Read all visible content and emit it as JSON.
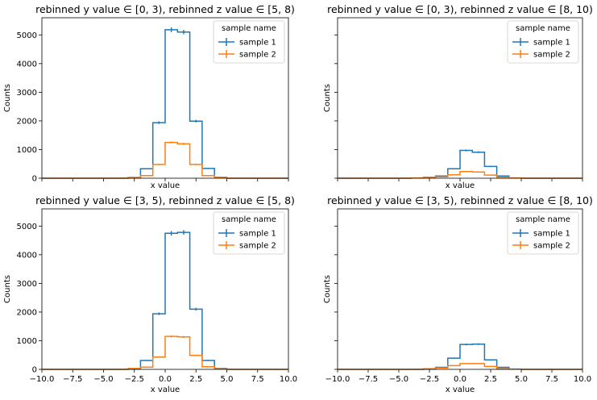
{
  "figure": {
    "legend_title": "sample name",
    "colors": {
      "sample 1": "#1f77b4",
      "sample 2": "#ff7f0e"
    }
  },
  "chart_data": [
    {
      "type": "step-histogram",
      "title": "rebinned y value ∈ [0, 3), rebinned z value ∈ [5, 8)",
      "xlabel": "x value",
      "ylabel": "Counts",
      "xlim": [
        -10,
        10
      ],
      "ylim": [
        0,
        5600
      ],
      "xticks": [
        "-10.0",
        "-7.5",
        "-5.0",
        "-2.5",
        "0.0",
        "2.5",
        "5.0",
        "7.5",
        "10.0"
      ],
      "yticks": [
        "0",
        "1000",
        "2000",
        "3000",
        "4000",
        "5000"
      ],
      "show_xticklabels": false,
      "show_yticklabels": true,
      "legend": {
        "title": "sample name",
        "position": "upper right"
      },
      "bin_edges": [
        -10,
        -9,
        -8,
        -7,
        -6,
        -5,
        -4,
        -3,
        -2,
        -1,
        0,
        1,
        2,
        3,
        4,
        5,
        6,
        7,
        8,
        9,
        10
      ],
      "series": [
        {
          "name": "sample 1",
          "values": [
            0,
            0,
            0,
            0,
            0,
            0,
            0,
            5,
            330,
            1940,
            5180,
            5100,
            1990,
            340,
            30,
            0,
            0,
            0,
            0,
            0
          ],
          "errors": [
            0,
            0,
            0,
            0,
            0,
            0,
            0,
            2,
            18,
            45,
            80,
            75,
            45,
            18,
            5,
            0,
            0,
            0,
            0,
            0
          ]
        },
        {
          "name": "sample 2",
          "values": [
            0,
            0,
            0,
            0,
            0,
            0,
            0,
            30,
            90,
            480,
            1250,
            1200,
            480,
            90,
            20,
            0,
            0,
            0,
            0,
            0
          ],
          "errors": [
            0,
            0,
            0,
            0,
            0,
            0,
            0,
            5,
            9,
            22,
            35,
            35,
            22,
            9,
            4,
            0,
            0,
            0,
            0,
            0
          ]
        }
      ]
    },
    {
      "type": "step-histogram",
      "title": "rebinned y value ∈ [0, 3), rebinned z value ∈ [8, 10)",
      "xlabel": "x value",
      "ylabel": "Counts",
      "xlim": [
        -10,
        10
      ],
      "ylim": [
        0,
        5600
      ],
      "xticks": [
        "-10.0",
        "-7.5",
        "-5.0",
        "-2.5",
        "0.0",
        "2.5",
        "5.0",
        "7.5",
        "10.0"
      ],
      "yticks": [
        "0",
        "1000",
        "2000",
        "3000",
        "4000",
        "5000"
      ],
      "show_xticklabels": false,
      "show_yticklabels": false,
      "legend": {
        "title": "sample name",
        "position": "upper right"
      },
      "bin_edges": [
        -10,
        -9,
        -8,
        -7,
        -6,
        -5,
        -4,
        -3,
        -2,
        -1,
        0,
        1,
        2,
        3,
        4,
        5,
        6,
        7,
        8,
        9,
        10
      ],
      "series": [
        {
          "name": "sample 1",
          "values": [
            0,
            0,
            0,
            0,
            0,
            0,
            5,
            30,
            80,
            330,
            970,
            910,
            410,
            80,
            10,
            0,
            0,
            0,
            0,
            0
          ],
          "errors": [
            0,
            0,
            0,
            0,
            0,
            0,
            2,
            5,
            9,
            18,
            31,
            30,
            20,
            9,
            3,
            0,
            0,
            0,
            0,
            0
          ]
        },
        {
          "name": "sample 2",
          "values": [
            0,
            0,
            0,
            0,
            0,
            0,
            5,
            20,
            50,
            120,
            230,
            220,
            110,
            30,
            5,
            0,
            0,
            0,
            0,
            0
          ],
          "errors": [
            0,
            0,
            0,
            0,
            0,
            0,
            2,
            4,
            7,
            11,
            15,
            15,
            10,
            5,
            2,
            0,
            0,
            0,
            0,
            0
          ]
        }
      ]
    },
    {
      "type": "step-histogram",
      "title": "rebinned y value ∈ [3, 5), rebinned z value ∈ [5, 8)",
      "xlabel": "x value",
      "ylabel": "Counts",
      "xlim": [
        -10,
        10
      ],
      "ylim": [
        0,
        5600
      ],
      "xticks": [
        "-10.0",
        "-7.5",
        "-5.0",
        "-2.5",
        "0.0",
        "2.5",
        "5.0",
        "7.5",
        "10.0"
      ],
      "yticks": [
        "0",
        "1000",
        "2000",
        "3000",
        "4000",
        "5000"
      ],
      "show_xticklabels": true,
      "show_yticklabels": true,
      "legend": {
        "title": "sample name",
        "position": "upper right"
      },
      "bin_edges": [
        -10,
        -9,
        -8,
        -7,
        -6,
        -5,
        -4,
        -3,
        -2,
        -1,
        0,
        1,
        2,
        3,
        4,
        5,
        6,
        7,
        8,
        9,
        10
      ],
      "series": [
        {
          "name": "sample 1",
          "values": [
            0,
            0,
            0,
            0,
            0,
            0,
            0,
            5,
            310,
            1940,
            4750,
            4780,
            2100,
            310,
            30,
            0,
            0,
            0,
            0,
            0
          ],
          "errors": [
            0,
            0,
            0,
            0,
            0,
            0,
            0,
            2,
            18,
            45,
            78,
            78,
            45,
            18,
            5,
            0,
            0,
            0,
            0,
            0
          ]
        },
        {
          "name": "sample 2",
          "values": [
            0,
            0,
            0,
            0,
            0,
            0,
            0,
            30,
            80,
            430,
            1150,
            1130,
            490,
            90,
            20,
            0,
            0,
            0,
            0,
            0
          ],
          "errors": [
            0,
            0,
            0,
            0,
            0,
            0,
            0,
            5,
            9,
            21,
            34,
            34,
            22,
            9,
            4,
            0,
            0,
            0,
            0,
            0
          ]
        }
      ]
    },
    {
      "type": "step-histogram",
      "title": "rebinned y value ∈ [3, 5), rebinned z value ∈ [8, 10)",
      "xlabel": "x value",
      "ylabel": "Counts",
      "xlim": [
        -10,
        10
      ],
      "ylim": [
        0,
        5600
      ],
      "xticks": [
        "-10.0",
        "-7.5",
        "-5.0",
        "-2.5",
        "0.0",
        "2.5",
        "5.0",
        "7.5",
        "10.0"
      ],
      "yticks": [
        "0",
        "1000",
        "2000",
        "3000",
        "4000",
        "5000"
      ],
      "show_xticklabels": true,
      "show_yticklabels": false,
      "legend": {
        "title": "sample name",
        "position": "upper right"
      },
      "bin_edges": [
        -10,
        -9,
        -8,
        -7,
        -6,
        -5,
        -4,
        -3,
        -2,
        -1,
        0,
        1,
        2,
        3,
        4,
        5,
        6,
        7,
        8,
        9,
        10
      ],
      "series": [
        {
          "name": "sample 1",
          "values": [
            0,
            0,
            0,
            0,
            0,
            0,
            0,
            5,
            70,
            390,
            870,
            880,
            330,
            70,
            10,
            0,
            0,
            0,
            0,
            0
          ],
          "errors": [
            0,
            0,
            0,
            0,
            0,
            0,
            0,
            2,
            8,
            20,
            30,
            30,
            18,
            8,
            3,
            0,
            0,
            0,
            0,
            0
          ]
        },
        {
          "name": "sample 2",
          "values": [
            0,
            0,
            0,
            0,
            0,
            0,
            0,
            20,
            50,
            130,
            200,
            200,
            100,
            20,
            5,
            0,
            0,
            0,
            0,
            0
          ],
          "errors": [
            0,
            0,
            0,
            0,
            0,
            0,
            0,
            4,
            7,
            11,
            14,
            14,
            10,
            4,
            2,
            0,
            0,
            0,
            0,
            0
          ]
        }
      ]
    }
  ]
}
